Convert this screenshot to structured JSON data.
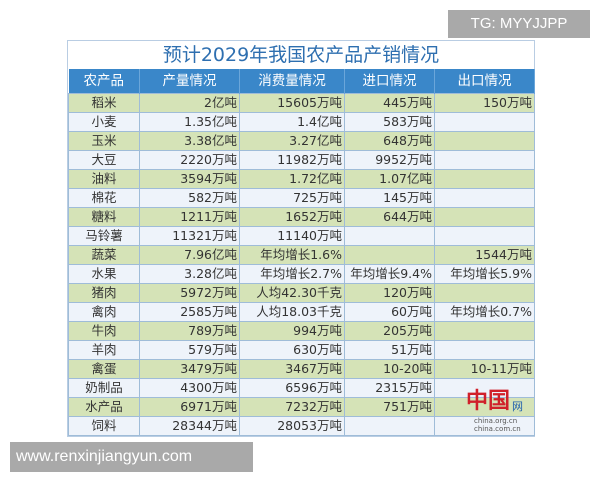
{
  "watermark_top": "TG: MYYJJPP",
  "watermark_bottom": "www.renxinjiangyun.com",
  "title": "预计2029年我国农产品产销情况",
  "headers": [
    "农产品",
    "产量情况",
    "消费量情况",
    "进口情况",
    "出口情况"
  ],
  "rows": [
    [
      "稻米",
      "2亿吨",
      "15605万吨",
      "445万吨",
      "150万吨"
    ],
    [
      "小麦",
      "1.35亿吨",
      "1.4亿吨",
      "583万吨",
      ""
    ],
    [
      "玉米",
      "3.38亿吨",
      "3.27亿吨",
      "648万吨",
      ""
    ],
    [
      "大豆",
      "2220万吨",
      "11982万吨",
      "9952万吨",
      ""
    ],
    [
      "油料",
      "3594万吨",
      "1.72亿吨",
      "1.07亿吨",
      ""
    ],
    [
      "棉花",
      "582万吨",
      "725万吨",
      "145万吨",
      ""
    ],
    [
      "糖料",
      "1211万吨",
      "1652万吨",
      "644万吨",
      ""
    ],
    [
      "马铃薯",
      "11321万吨",
      "11140万吨",
      "",
      ""
    ],
    [
      "蔬菜",
      "7.96亿吨",
      "年均增长1.6%",
      "",
      "1544万吨"
    ],
    [
      "水果",
      "3.28亿吨",
      "年均增长2.7%",
      "年均增长9.4%",
      "年均增长5.9%"
    ],
    [
      "猪肉",
      "5972万吨",
      "人均42.30千克",
      "120万吨",
      ""
    ],
    [
      "禽肉",
      "2585万吨",
      "人均18.03千克",
      "60万吨",
      "年均增长0.7%"
    ],
    [
      "牛肉",
      "789万吨",
      "994万吨",
      "205万吨",
      ""
    ],
    [
      "羊肉",
      "579万吨",
      "630万吨",
      "51万吨",
      ""
    ],
    [
      "禽蛋",
      "3479万吨",
      "3467万吨",
      "10-20吨",
      "10-11万吨"
    ],
    [
      "奶制品",
      "4300万吨",
      "6596万吨",
      "2315万吨",
      ""
    ],
    [
      "水产品",
      "6971万吨",
      "7232万吨",
      "751万吨",
      ""
    ],
    [
      "饲料",
      "28344万吨",
      "28053万吨",
      "",
      ""
    ]
  ],
  "logo": {
    "mark": "中国",
    "net": "网",
    "urls": [
      "china.org.cn",
      "china.com.cn"
    ]
  },
  "colors": {
    "header": "#3a87c9",
    "row_green": "#d5e3b7",
    "row_light": "#eef3fa",
    "title": "#2e6fb0"
  }
}
